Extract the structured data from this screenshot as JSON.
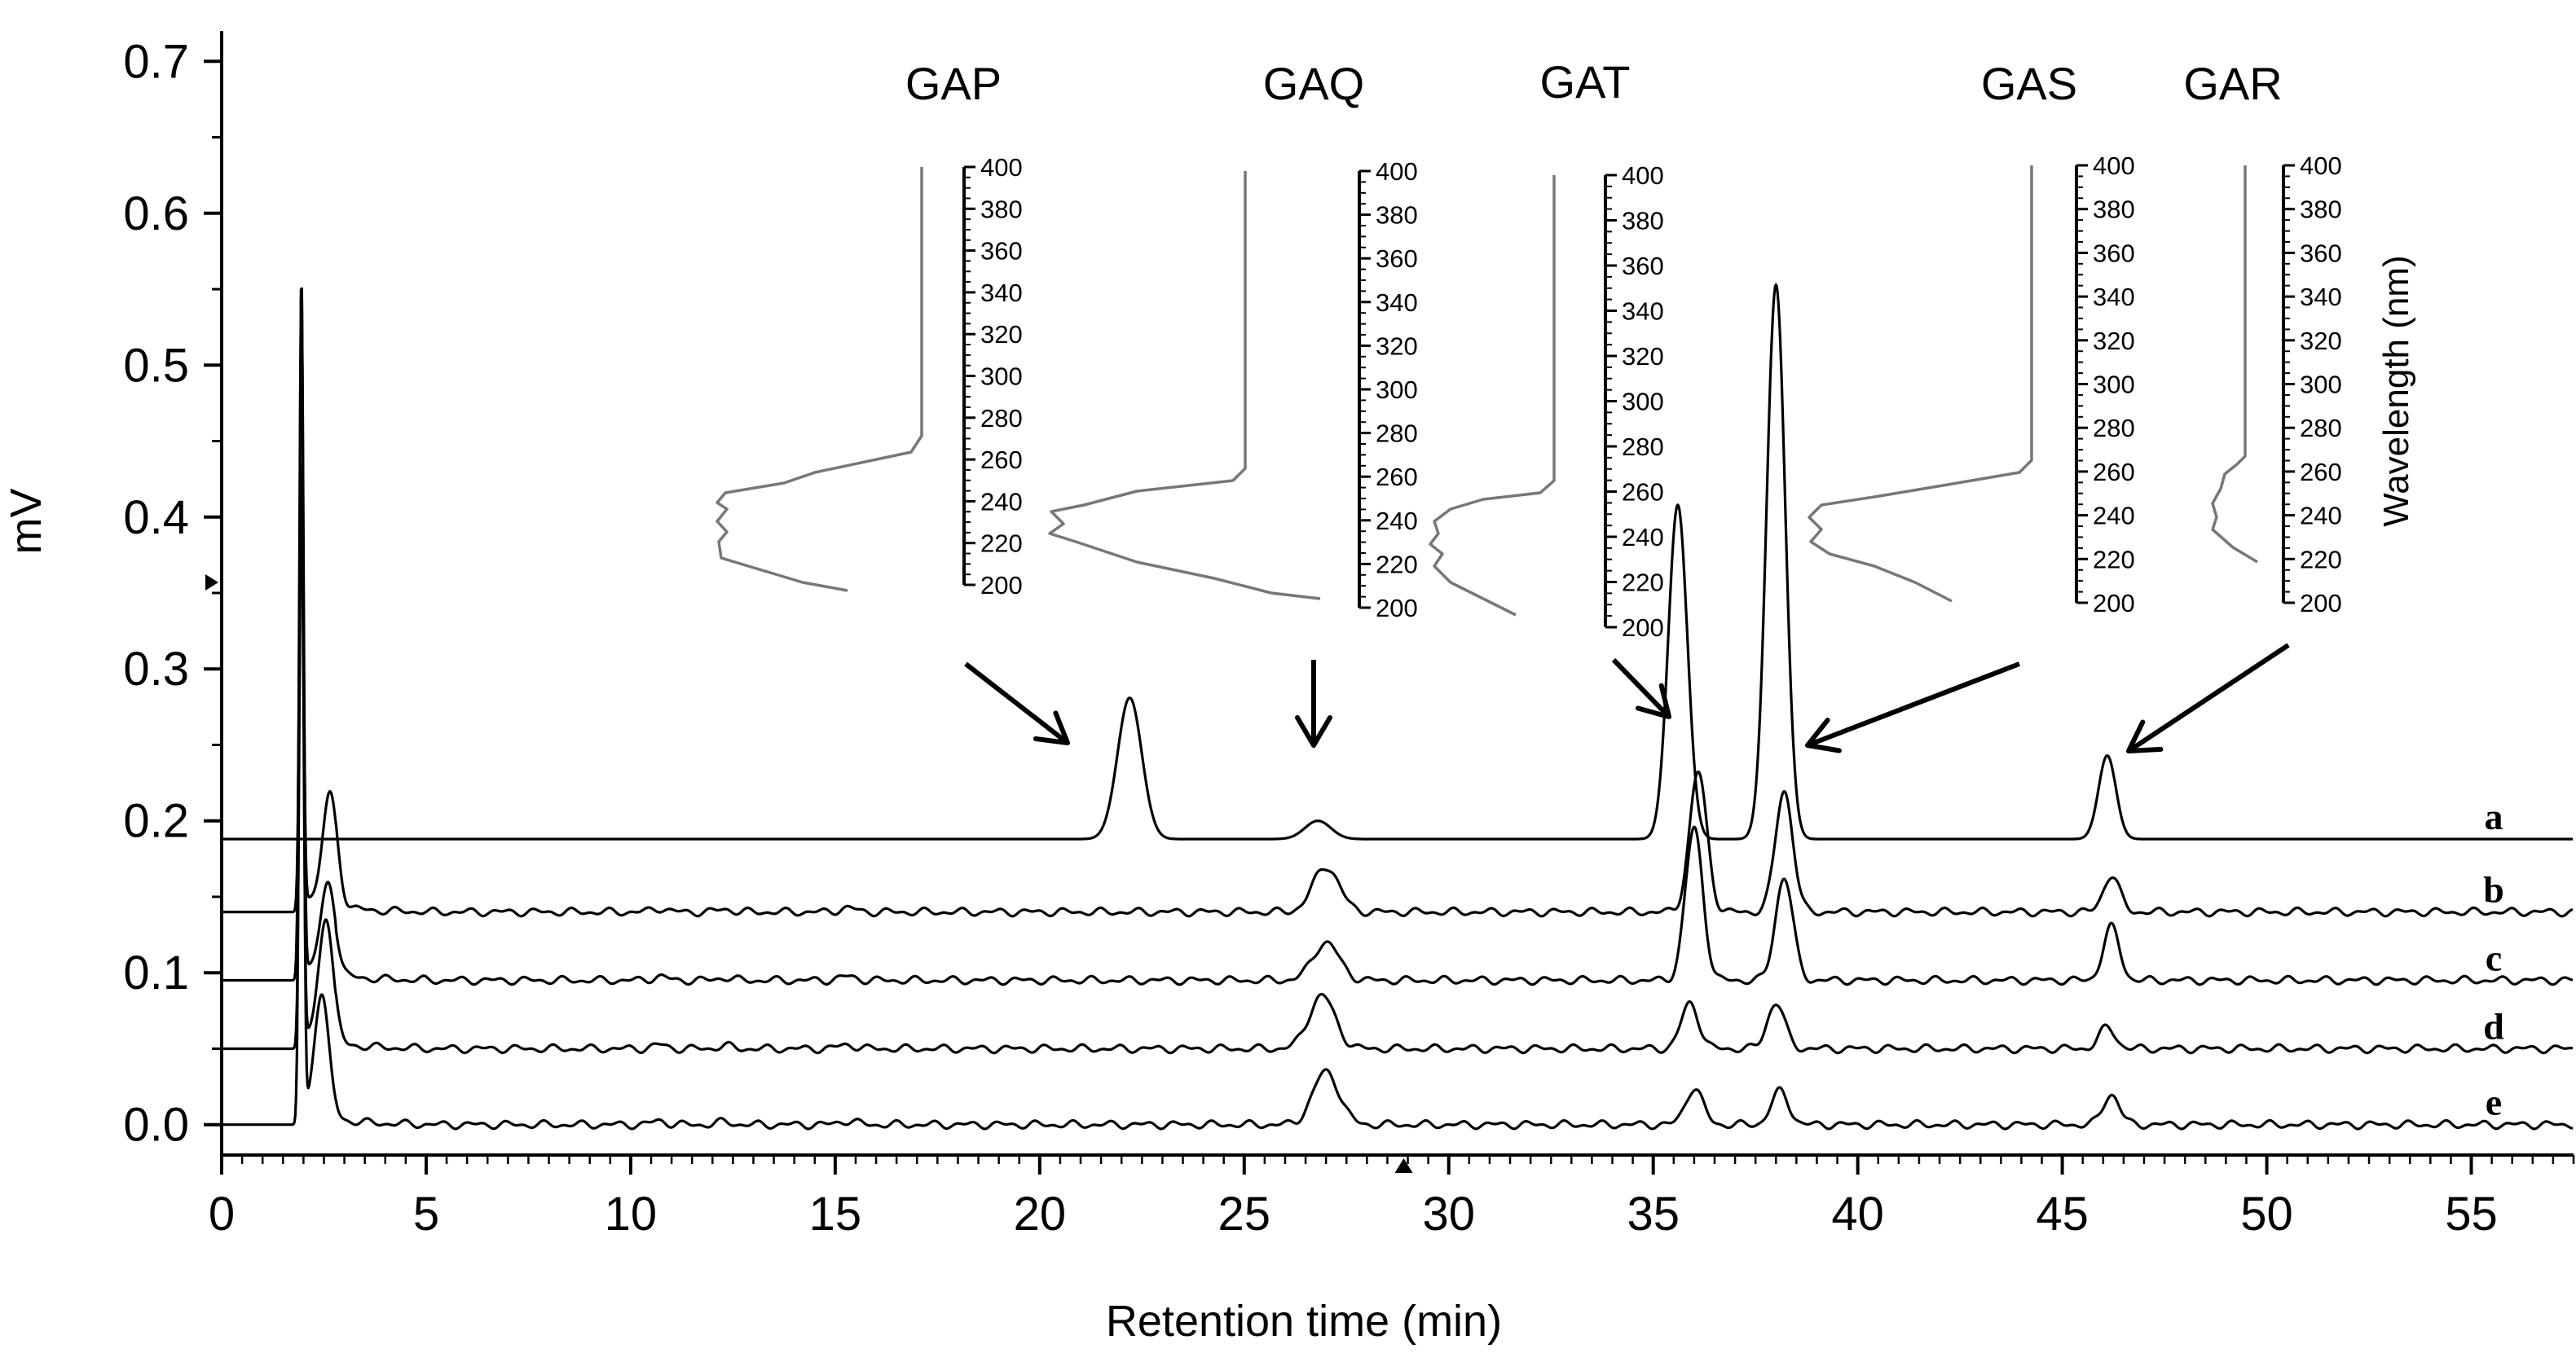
{
  "chart_data": {
    "type": "line",
    "title": "",
    "xlabel": "Retention time (min)",
    "ylabel": "mV",
    "xlim": [
      0,
      57.5
    ],
    "ylim": [
      -0.02,
      0.72
    ],
    "x_ticks": [
      0,
      5,
      10,
      15,
      20,
      25,
      30,
      35,
      40,
      45,
      50,
      55
    ],
    "y_ticks": [
      0.0,
      0.1,
      0.2,
      0.3,
      0.4,
      0.5,
      0.6,
      0.7
    ],
    "y_tick_labels": [
      "0.0",
      "0.1",
      "0.2",
      "0.3",
      "0.4",
      "0.5",
      "0.6",
      "0.7"
    ],
    "series": [
      {
        "name": "a",
        "baseline": 0.188,
        "start": 0,
        "peaks": [
          {
            "t": 22.2,
            "h": 0.093,
            "w": 0.42
          },
          {
            "t": 26.8,
            "h": 0.012,
            "w": 0.45
          },
          {
            "t": 35.6,
            "h": 0.22,
            "w": 0.33
          },
          {
            "t": 38.0,
            "h": 0.365,
            "w": 0.32
          },
          {
            "t": 46.1,
            "h": 0.055,
            "w": 0.3
          }
        ]
      },
      {
        "name": "b",
        "baseline": 0.14,
        "start": 1.6,
        "peaks": [
          {
            "t": 1.95,
            "h": 0.3,
            "w": 0.07
          },
          {
            "t": 2.65,
            "h": 0.075,
            "w": 0.25
          },
          {
            "t": 27.0,
            "h": 0.03,
            "w": 0.45
          },
          {
            "t": 36.1,
            "h": 0.092,
            "w": 0.3
          },
          {
            "t": 38.2,
            "h": 0.08,
            "w": 0.3
          },
          {
            "t": 46.2,
            "h": 0.024,
            "w": 0.28
          }
        ]
      },
      {
        "name": "c",
        "baseline": 0.095,
        "start": 1.6,
        "peaks": [
          {
            "t": 1.95,
            "h": 0.46,
            "w": 0.07
          },
          {
            "t": 2.6,
            "h": 0.06,
            "w": 0.25
          },
          {
            "t": 27.0,
            "h": 0.025,
            "w": 0.45
          },
          {
            "t": 36.0,
            "h": 0.1,
            "w": 0.3
          },
          {
            "t": 38.2,
            "h": 0.068,
            "w": 0.3
          },
          {
            "t": 46.2,
            "h": 0.035,
            "w": 0.28
          }
        ]
      },
      {
        "name": "d",
        "baseline": 0.05,
        "start": 1.6,
        "peaks": [
          {
            "t": 1.95,
            "h": 0.37,
            "w": 0.07
          },
          {
            "t": 2.55,
            "h": 0.08,
            "w": 0.25
          },
          {
            "t": 26.9,
            "h": 0.035,
            "w": 0.45
          },
          {
            "t": 35.9,
            "h": 0.03,
            "w": 0.3
          },
          {
            "t": 38.0,
            "h": 0.03,
            "w": 0.3
          },
          {
            "t": 46.1,
            "h": 0.014,
            "w": 0.28
          }
        ]
      },
      {
        "name": "e",
        "baseline": 0.0,
        "start": 1.6,
        "peaks": [
          {
            "t": 1.95,
            "h": 0.56,
            "w": 0.07
          },
          {
            "t": 2.45,
            "h": 0.08,
            "w": 0.25
          },
          {
            "t": 27.0,
            "h": 0.035,
            "w": 0.45
          },
          {
            "t": 36.0,
            "h": 0.024,
            "w": 0.3
          },
          {
            "t": 38.1,
            "h": 0.022,
            "w": 0.3
          },
          {
            "t": 46.2,
            "h": 0.02,
            "w": 0.28
          }
        ]
      }
    ],
    "annotations": [
      "GAP",
      "GAQ",
      "GAT",
      "GAS",
      "GAR"
    ],
    "inset_ylabel": "Wavelength (nm)",
    "inset_ticks": [
      200,
      220,
      240,
      260,
      280,
      300,
      320,
      340,
      360,
      380,
      400
    ],
    "inset_tick_labels": [
      "200",
      "220",
      "240",
      "260",
      "280",
      "300",
      "320",
      "340",
      "360",
      "380",
      "400"
    ]
  }
}
